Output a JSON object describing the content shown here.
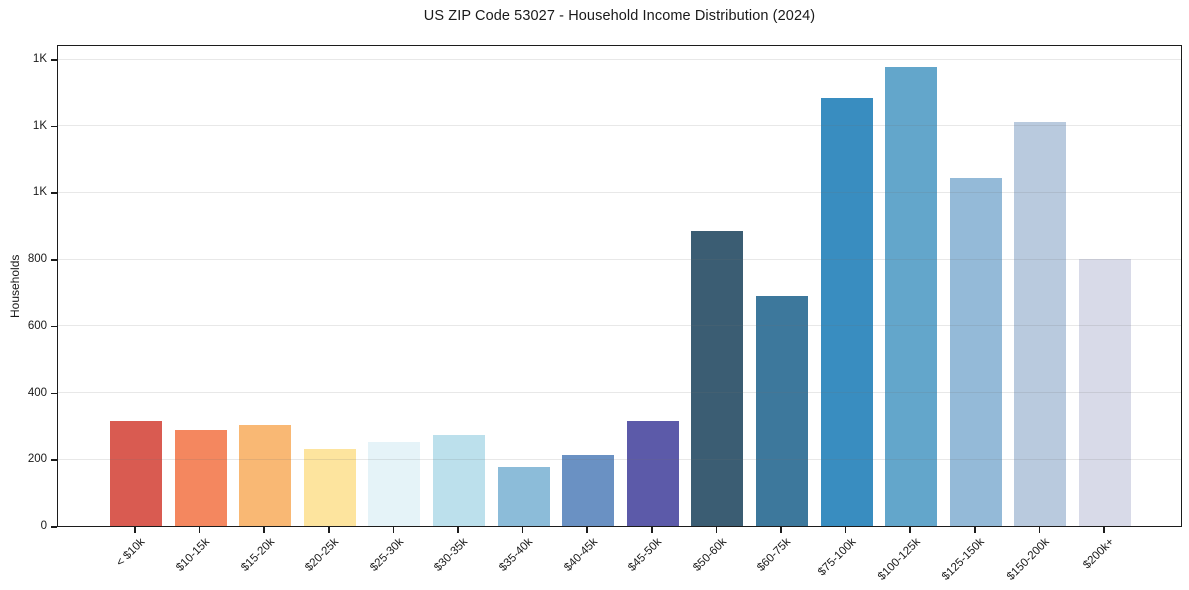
{
  "figure": {
    "title": "US ZIP Code 53027 - Household Income Distribution (2024)",
    "ylabel": "Households"
  },
  "chart_data": {
    "type": "bar",
    "title": "US ZIP Code 53027 - Household Income Distribution (2024)",
    "xlabel": "",
    "ylabel": "Households",
    "categories": [
      "< $10k",
      "$10-15k",
      "$15-20k",
      "$20-25k",
      "$25-30k",
      "$30-35k",
      "$35-40k",
      "$40-45k",
      "$45-50k",
      "$50-60k",
      "$60-75k",
      "$75-100k",
      "$100-125k",
      "$125-150k",
      "$150-200k",
      "$200k+"
    ],
    "values": [
      315,
      288,
      302,
      231,
      253,
      272,
      176,
      212,
      314,
      885,
      691,
      1282,
      1377,
      1043,
      1212,
      800
    ],
    "bar_colors": [
      "#d95b51",
      "#f4875f",
      "#f9b874",
      "#fde49e",
      "#e5f3f8",
      "#bce0ec",
      "#8cbcd9",
      "#6a91c3",
      "#5c5aa9",
      "#3b5d73",
      "#3d789c",
      "#398dc0",
      "#63a6cb",
      "#94bad8",
      "#b9cade",
      "#d8dae8"
    ],
    "ylim": [
      0,
      1445
    ],
    "ytick_values": [
      0,
      200,
      400,
      600,
      800,
      1000,
      1200,
      1400
    ],
    "ytick_labels": [
      "0",
      "200",
      "400",
      "600",
      "800",
      "1K",
      "1K",
      "1K"
    ],
    "grid": "horizontal",
    "legend": "none",
    "background": "#ffffff",
    "spine_color": "#1c1c1c"
  }
}
